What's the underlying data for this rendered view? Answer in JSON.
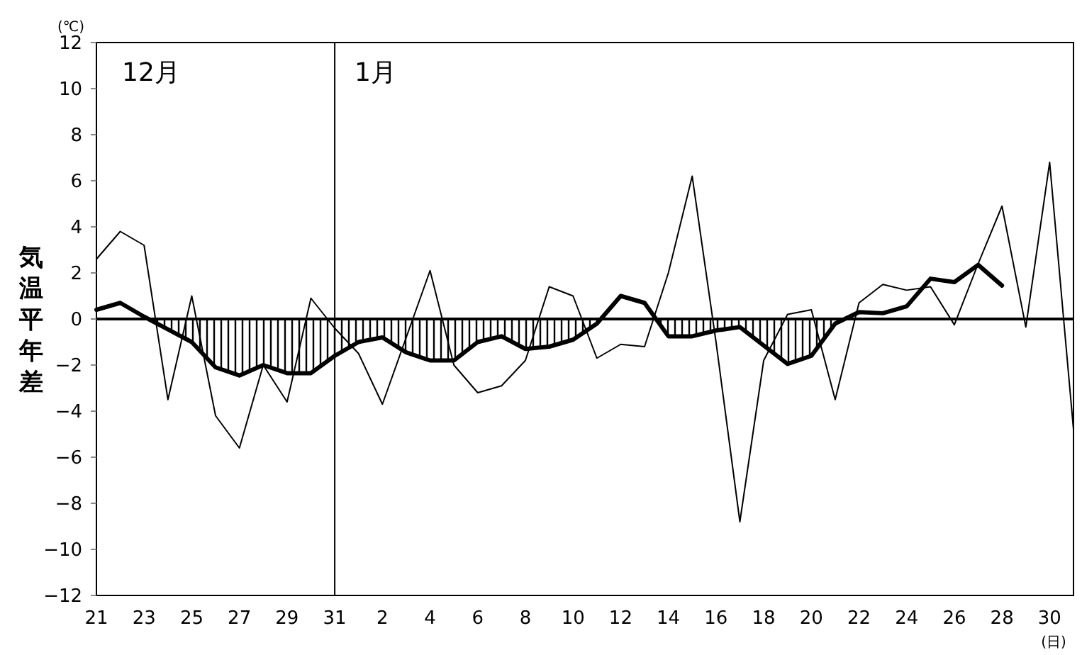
{
  "chart_data": {
    "type": "line",
    "ylabel": "気温平年差",
    "annotations": [
      "12月",
      "1月",
      "(℃)",
      "(日)"
    ],
    "categories": [
      "21",
      null,
      "23",
      null,
      "25",
      null,
      "27",
      null,
      "29",
      null,
      "31",
      null,
      "2",
      null,
      "4",
      null,
      "6",
      null,
      "8",
      null,
      "10",
      null,
      "12",
      null,
      "14",
      null,
      "16",
      null,
      "18",
      null,
      "20",
      null,
      "22",
      null,
      "24",
      null,
      "26",
      null,
      "28",
      null,
      "30",
      null
    ],
    "series": [
      {
        "color": "#000000",
        "values": [
          2.6,
          3.8,
          3.2,
          -3.5,
          1.0,
          -4.2,
          -5.6,
          -2.0,
          -3.6,
          0.9,
          -0.4,
          -1.5,
          -3.7,
          -0.8,
          2.1,
          -2.0,
          -3.2,
          -2.9,
          -1.8,
          1.4,
          1.0,
          -1.7,
          -1.1,
          -1.2,
          2.0,
          6.2,
          -1.0,
          -8.8,
          -1.8,
          0.2,
          0.4,
          -3.5,
          0.7,
          1.5,
          1.25,
          1.4,
          -0.25,
          2.4,
          4.9,
          -0.35,
          6.8,
          -4.8
        ]
      },
      {
        "color": "#000000",
        "values": [
          0.4,
          0.7,
          0.1,
          -0.45,
          -1.0,
          -2.1,
          -2.45,
          -2.0,
          -2.35,
          -2.35,
          -1.6,
          -1.0,
          -0.8,
          -1.45,
          -1.8,
          -1.8,
          -1.0,
          -0.75,
          -1.3,
          -1.2,
          -0.9,
          -0.2,
          1.0,
          0.7,
          -0.75,
          -0.75,
          -0.5,
          -0.35,
          -1.15,
          -1.95,
          -1.6,
          -0.2,
          0.3,
          0.25,
          0.55,
          1.75,
          1.6,
          2.35,
          1.45,
          null,
          null,
          null
        ]
      }
    ],
    "ylim": [
      -12,
      12
    ],
    "yticks": [
      -12,
      -10,
      -8,
      -6,
      -4,
      -2,
      0,
      2,
      4,
      6,
      8,
      10,
      12
    ],
    "ref_lines": [
      {
        "axis": "y",
        "value": 0,
        "color": "#000000"
      },
      {
        "axis": "x",
        "value": "31",
        "color": "#000000"
      }
    ],
    "grid": false,
    "marker": "none",
    "line_style": "solid"
  }
}
